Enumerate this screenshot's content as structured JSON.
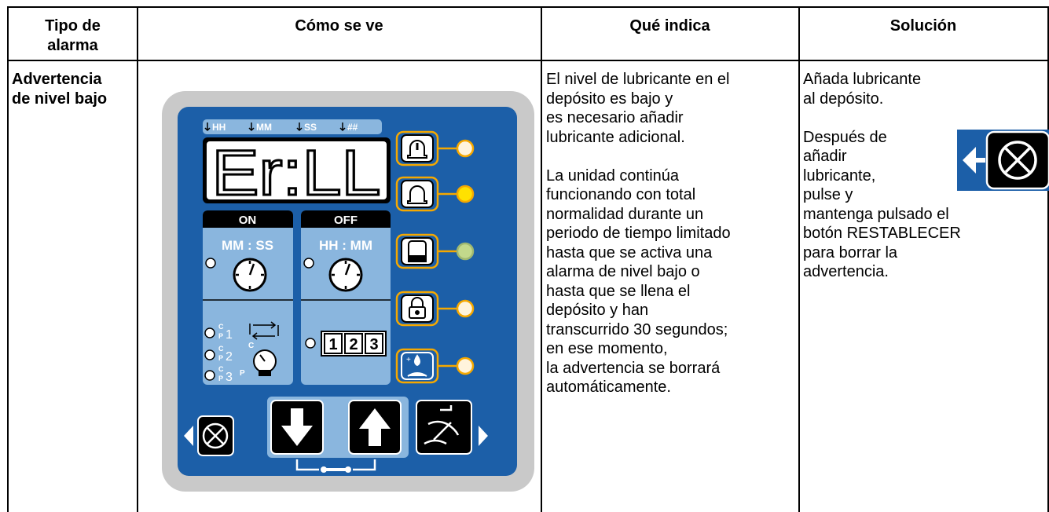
{
  "table": {
    "headers": [
      "Tipo de alarma",
      "Cómo se ve",
      "Qué indica",
      "Solución"
    ],
    "rows": [
      {
        "alarm_type": "Advertencia de nivel bajo",
        "indicates": [
          [
            "El nivel de lubricante en el",
            "depósito es bajo y",
            "es necesario añadir",
            "lubricante adicional."
          ],
          [
            "La unidad continúa",
            "funcionando con total",
            "normalidad durante un",
            "periodo de tiempo limitado",
            "hasta que se activa una",
            "alarma de nivel bajo o",
            "hasta que se llena el",
            "depósito y han",
            "transcurrido 30 segundos;",
            "en ese momento,",
            "la advertencia se borrará",
            "automáticamente."
          ]
        ],
        "solution": [
          [
            "Añada lubricante",
            "al depósito."
          ],
          [
            "Después de",
            "añadir",
            "lubricante,",
            "pulse y",
            "mantenga pulsado el",
            "botón RESTABLECER",
            "para borrar la",
            "advertencia."
          ]
        ]
      }
    ]
  },
  "panel": {
    "scale_labels": [
      "HH",
      "MM",
      "SS",
      "##"
    ],
    "display": "Er:LL",
    "on_label": "ON",
    "off_label": "OFF",
    "on_format": "MM : SS",
    "off_format": "HH : MM",
    "channels": [
      {
        "top": "C",
        "bottom": "P",
        "number": "1"
      },
      {
        "top": "C",
        "bottom": "P",
        "number": "2"
      },
      {
        "top": "C",
        "bottom": "P",
        "number": "3"
      }
    ],
    "cycle_icon_label": "C",
    "pressure_icon_label": "P",
    "counter": [
      "1",
      "2",
      "3"
    ],
    "drop_symbol": "+"
  }
}
